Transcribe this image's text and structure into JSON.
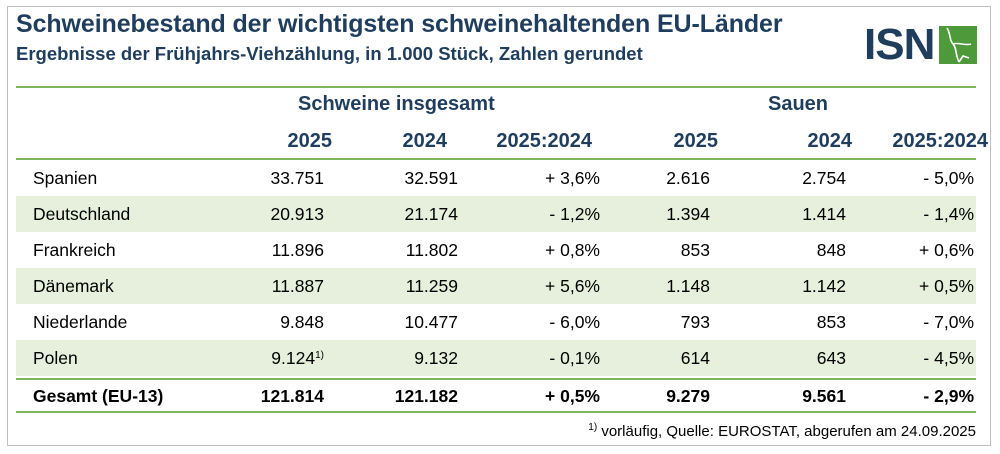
{
  "title": "Schweinebestand der wichtigsten schweinehaltenden EU-Länder",
  "subtitle": "Ergebnisse der Frühjahrs-Viehzählung, in 1.000 Stück, Zahlen gerundet",
  "logo": {
    "text": "ISN"
  },
  "groups": {
    "total_pigs": "Schweine insgesamt",
    "sows": "Sauen"
  },
  "columns": [
    "2025",
    "2024",
    "2025:2024",
    "2025",
    "2024",
    "2025:2024"
  ],
  "rows": [
    {
      "name": "Spanien",
      "p2025": "33.751",
      "p2024": "32.591",
      "pchg": "+ 3,6%",
      "s2025": "2.616",
      "s2024": "2.754",
      "schg": "- 5,0%"
    },
    {
      "name": "Deutschland",
      "p2025": "20.913",
      "p2024": "21.174",
      "pchg": "- 1,2%",
      "s2025": "1.394",
      "s2024": "1.414",
      "schg": "- 1,4%"
    },
    {
      "name": "Frankreich",
      "p2025": "11.896",
      "p2024": "11.802",
      "pchg": "+ 0,8%",
      "s2025": "853",
      "s2024": "848",
      "schg": "+ 0,6%"
    },
    {
      "name": "Dänemark",
      "p2025": "11.887",
      "p2024": "11.259",
      "pchg": "+ 5,6%",
      "s2025": "1.148",
      "s2024": "1.142",
      "schg": "+ 0,5%"
    },
    {
      "name": "Niederlande",
      "p2025": "9.848",
      "p2024": "10.477",
      "pchg": "- 6,0%",
      "s2025": "793",
      "s2024": "853",
      "schg": "- 7,0%"
    },
    {
      "name": "Polen",
      "p2025": "9.124",
      "p2025_note": "1)",
      "p2024": "9.132",
      "pchg": "- 0,1%",
      "s2025": "614",
      "s2024": "643",
      "schg": "- 4,5%"
    }
  ],
  "total": {
    "name": "Gesamt (EU-13)",
    "p2025": "121.814",
    "p2024": "121.182",
    "pchg": "+ 0,5%",
    "s2025": "9.279",
    "s2024": "9.561",
    "schg": "- 2,9%"
  },
  "footnote": {
    "marker": "1)",
    "text": " vorläufig, Quelle: EUROSTAT, abgerufen am 24.09.2025"
  },
  "colors": {
    "title": "#1f3d5c",
    "accent_green": "#7fb65b",
    "row_shade": "#e6f0dc",
    "logo_green": "#4e9a3a"
  }
}
